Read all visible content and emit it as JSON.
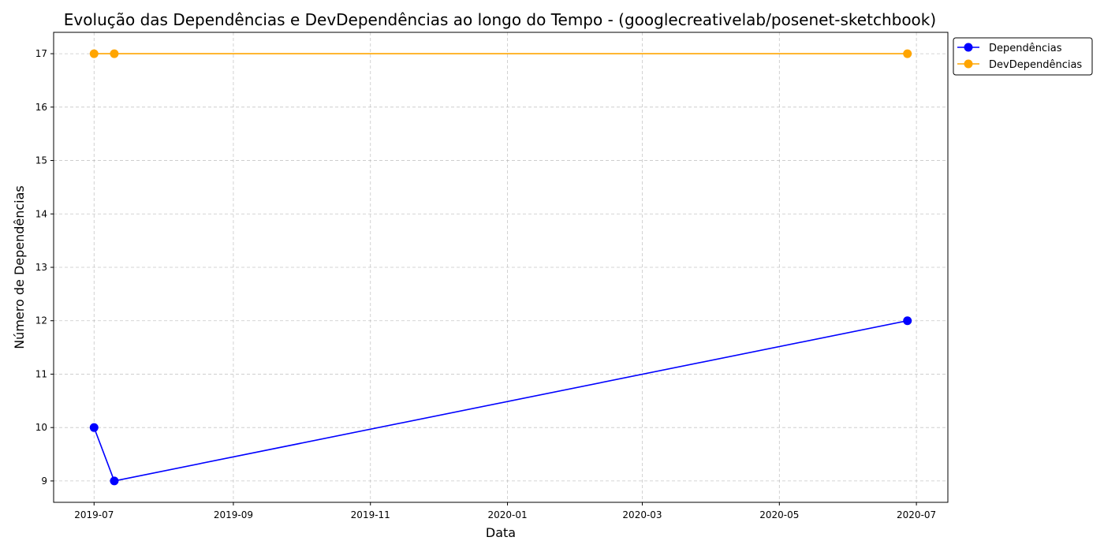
{
  "chart_data": {
    "type": "line",
    "title": "Evolução das Dependências e DevDependências ao longo do Tempo - (googlecreativelab/posenet-sketchbook)",
    "xlabel": "Data",
    "ylabel": "Número de Dependências",
    "x_type": "date",
    "xlim": [
      "2019-06-13",
      "2020-07-15"
    ],
    "ylim": [
      8.6,
      17.4
    ],
    "x_ticks": [
      "2019-07",
      "2019-09",
      "2019-11",
      "2020-01",
      "2020-03",
      "2020-05",
      "2020-07"
    ],
    "x_tick_dates": [
      "2019-07-01",
      "2019-09-01",
      "2019-11-01",
      "2020-01-01",
      "2020-03-01",
      "2020-05-01",
      "2020-07-01"
    ],
    "y_ticks": [
      "9",
      "10",
      "11",
      "12",
      "13",
      "14",
      "15",
      "16",
      "17"
    ],
    "grid": true,
    "legend_position": "outside-top-right",
    "series": [
      {
        "name": "Dependências",
        "color": "#0000ff",
        "x": [
          "2019-07-01",
          "2019-07-10",
          "2020-06-27"
        ],
        "values": [
          10,
          9,
          12
        ]
      },
      {
        "name": "DevDependências",
        "color": "#ffa500",
        "x": [
          "2019-07-01",
          "2019-07-10",
          "2020-06-27"
        ],
        "values": [
          17,
          17,
          17
        ]
      }
    ]
  }
}
